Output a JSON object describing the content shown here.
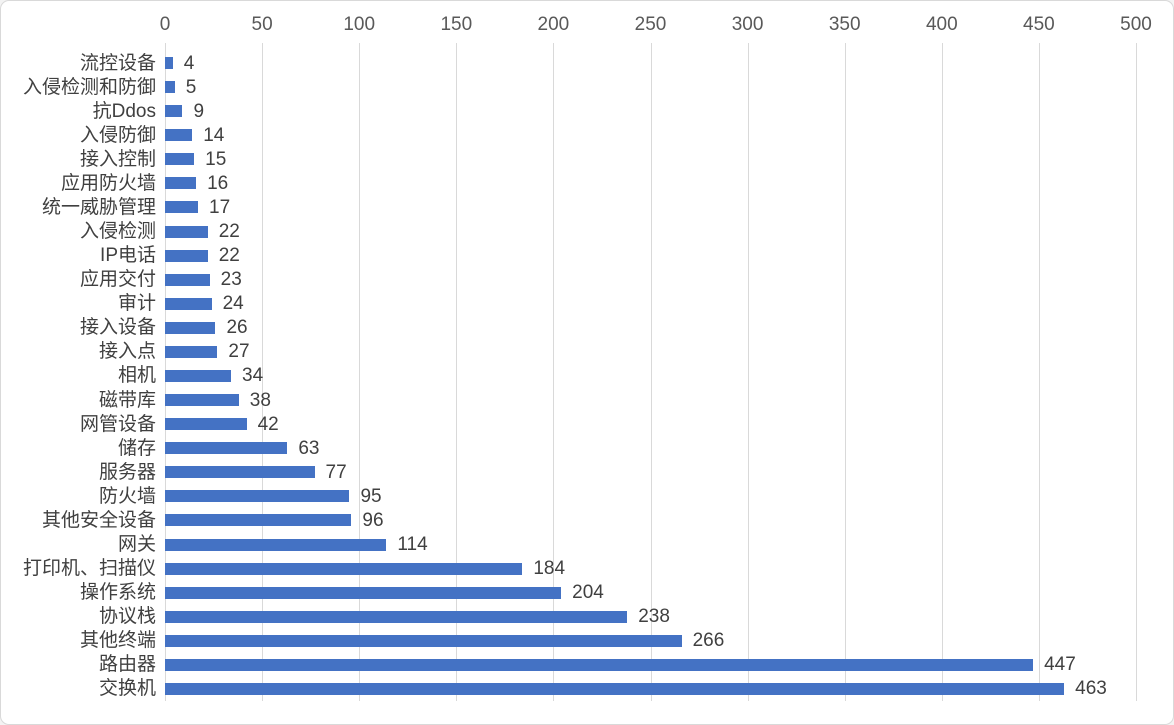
{
  "chart_data": {
    "type": "bar",
    "orientation": "horizontal",
    "title": "",
    "xlabel": "",
    "ylabel": "",
    "axis_position": "top",
    "grid": true,
    "data_labels": true,
    "xlim": [
      0,
      500
    ],
    "x_ticks": [
      0,
      50,
      100,
      150,
      200,
      250,
      300,
      350,
      400,
      450,
      500
    ],
    "categories": [
      "流控设备",
      "入侵检测和防御",
      "抗Ddos",
      "入侵防御",
      "接入控制",
      "应用防火墙",
      "统一威胁管理",
      "入侵检测",
      "IP电话",
      "应用交付",
      "审计",
      "接入设备",
      "接入点",
      "相机",
      "磁带库",
      "网管设备",
      "储存",
      "服务器",
      "防火墙",
      "其他安全设备",
      "网关",
      "打印机、扫描仪",
      "操作系统",
      "协议栈",
      "其他终端",
      "路由器",
      "交换机"
    ],
    "values": [
      4,
      5,
      9,
      14,
      15,
      16,
      17,
      22,
      22,
      23,
      24,
      26,
      27,
      34,
      38,
      42,
      63,
      77,
      95,
      96,
      114,
      184,
      204,
      238,
      266,
      447,
      463
    ]
  },
  "colors": {
    "bar": "#4472C4",
    "gridline": "#D9D9D9",
    "axis_text": "#595959",
    "value_text": "#404040",
    "category_text": "#404040",
    "border": "#D9D9D9",
    "background": "#FFFFFF"
  }
}
